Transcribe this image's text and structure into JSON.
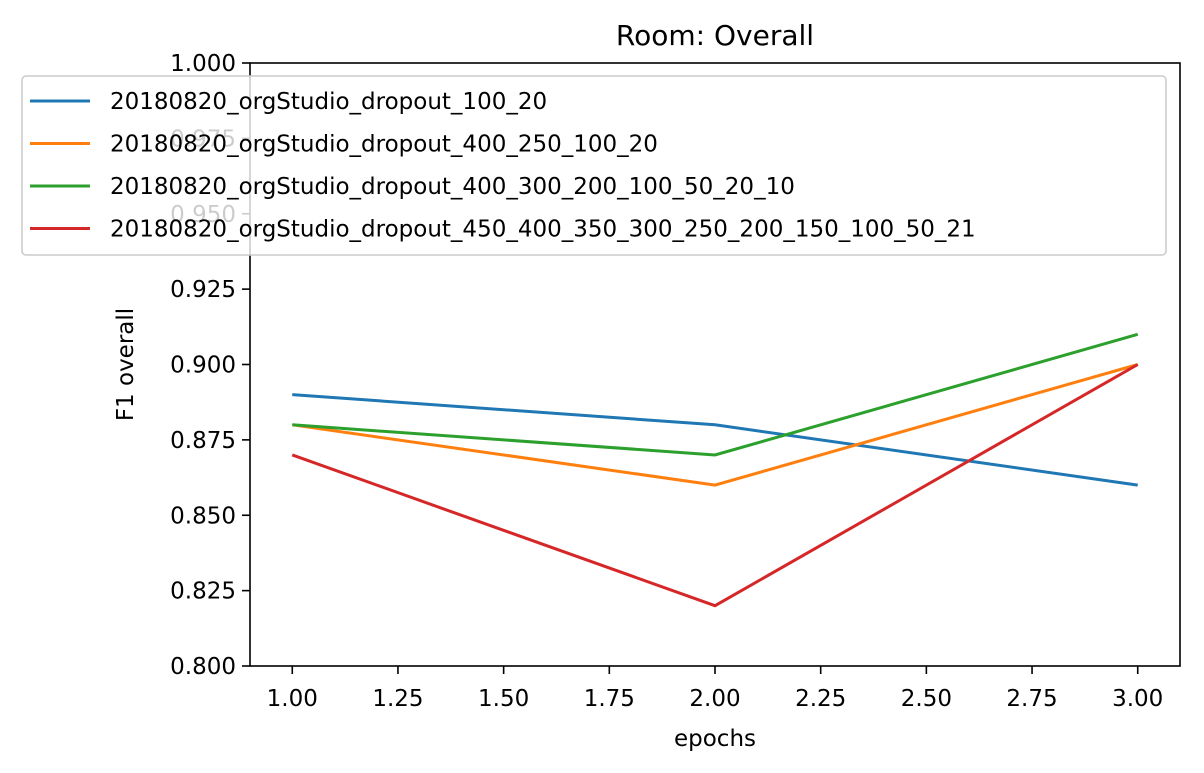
{
  "chart_data": {
    "type": "line",
    "title": "Room: Overall",
    "xlabel": "epochs",
    "ylabel": "F1 overall",
    "xlim": [
      0.9,
      3.1
    ],
    "ylim": [
      0.8,
      1.0
    ],
    "x_ticks": [
      "1.00",
      "1.25",
      "1.50",
      "1.75",
      "2.00",
      "2.25",
      "2.50",
      "2.75",
      "3.00"
    ],
    "y_ticks": [
      "0.800",
      "0.825",
      "0.850",
      "0.875",
      "0.900",
      "0.925",
      "0.950",
      "0.975",
      "1.000"
    ],
    "x": [
      1,
      2,
      3
    ],
    "grid": false,
    "legend_position": "top",
    "series": [
      {
        "name": "20180820_orgStudio_dropout_100_20",
        "color": "#1f77b4",
        "values": [
          0.89,
          0.88,
          0.86
        ]
      },
      {
        "name": "20180820_orgStudio_dropout_400_250_100_20",
        "color": "#ff7f0e",
        "values": [
          0.88,
          0.86,
          0.9
        ]
      },
      {
        "name": "20180820_orgStudio_dropout_400_300_200_100_50_20_10",
        "color": "#2ca02c",
        "values": [
          0.88,
          0.87,
          0.91
        ]
      },
      {
        "name": "20180820_orgStudio_dropout_450_400_350_300_250_200_150_100_50_21",
        "color": "#d62728",
        "values": [
          0.87,
          0.82,
          0.9
        ]
      }
    ]
  }
}
